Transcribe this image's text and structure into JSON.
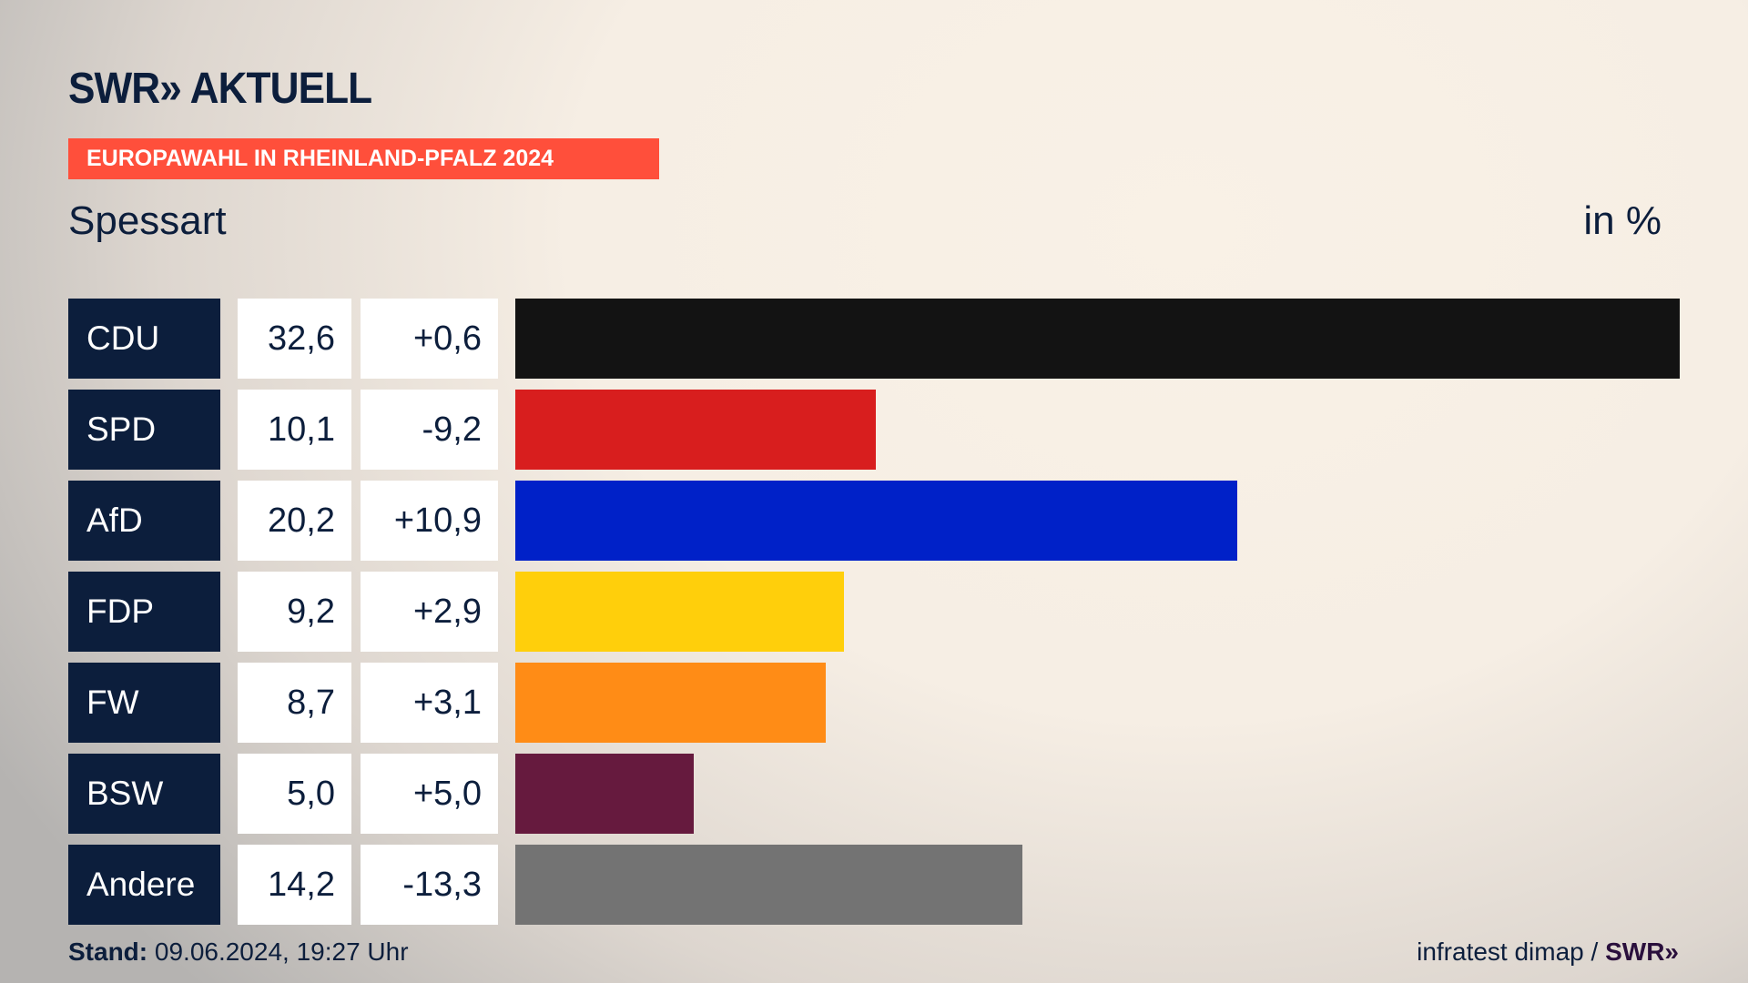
{
  "header": {
    "logo": "SWR» AKTUELL",
    "banner": "EUROPAWAHL IN RHEINLAND-PFALZ 2024",
    "region": "Spessart",
    "unit": "in %"
  },
  "chart_data": {
    "type": "bar",
    "title": "Europawahl in Rheinland-Pfalz 2024 – Spessart",
    "ylabel": "in %",
    "categories": [
      "CDU",
      "SPD",
      "AfD",
      "FDP",
      "FW",
      "BSW",
      "Andere"
    ],
    "values": [
      32.6,
      10.1,
      20.2,
      9.2,
      8.7,
      5.0,
      14.2
    ],
    "value_labels": [
      "32,6",
      "10,1",
      "20,2",
      "9,2",
      "8,7",
      "5,0",
      "14,2"
    ],
    "diff_labels": [
      "+0,6",
      "-9,2",
      "+10,9",
      "+2,9",
      "+3,1",
      "+5,0",
      "-13,3"
    ],
    "colors": [
      "#131313",
      "#d81e1e",
      "#0021c8",
      "#ffcf0b",
      "#ff8c16",
      "#661a3e",
      "#737373"
    ],
    "xlim": [
      0,
      32.6
    ]
  },
  "footer": {
    "stand_label": "Stand:",
    "stand_value": "09.06.2024, 19:27 Uhr",
    "source": "infratest dimap / ",
    "source_logo": "SWR»"
  }
}
